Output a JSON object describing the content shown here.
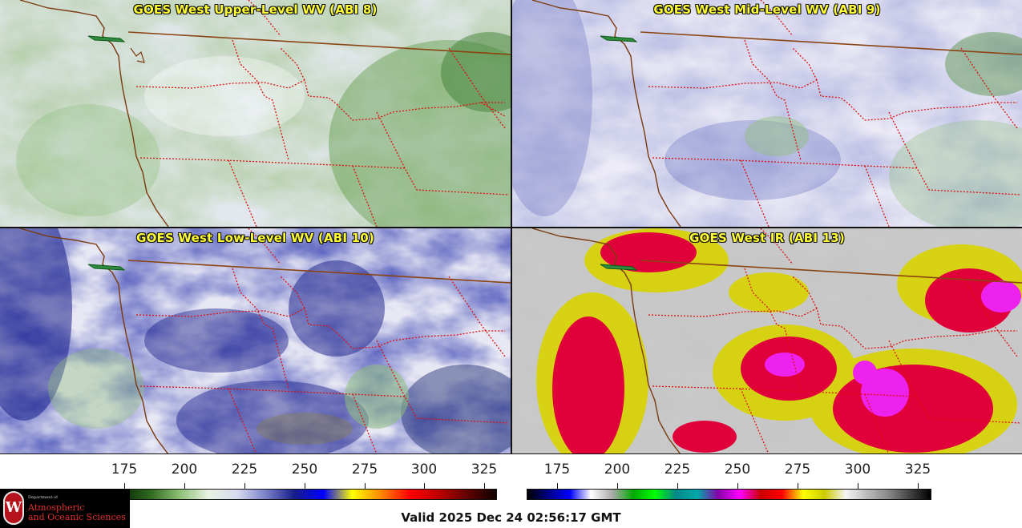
{
  "panels": [
    {
      "id": "upper",
      "title": "GOES West Upper-Level WV (ABI 8)",
      "palette": "wv-green"
    },
    {
      "id": "mid",
      "title": "GOES West Mid-Level WV (ABI 9)",
      "palette": "wv-blue"
    },
    {
      "id": "low",
      "title": "GOES West Low-Level WV (ABI 10)",
      "palette": "wv-navy"
    },
    {
      "id": "ir",
      "title": "GOES West IR (ABI 13)",
      "palette": "ir-enhanced"
    }
  ],
  "colorbars": {
    "wv": {
      "ticks": [
        "175",
        "200",
        "225",
        "250",
        "275",
        "300",
        "325"
      ],
      "colors": [
        "#000000",
        "#0b2a05",
        "#2f6a1f",
        "#8cbf73",
        "#e8f2e2",
        "#d8dcf0",
        "#7a80c8",
        "#161d8a",
        "#0000ff",
        "#ffff00",
        "#ff8800",
        "#ff0000",
        "#c00000",
        "#600000",
        "#100000"
      ]
    },
    "ir": {
      "ticks": [
        "175",
        "200",
        "225",
        "250",
        "275",
        "300",
        "325"
      ],
      "colors": [
        "#000000",
        "#000088",
        "#0000ff",
        "#ffffff",
        "#aaaaaa",
        "#00aa00",
        "#00ff00",
        "#008888",
        "#00aaaa",
        "#8800aa",
        "#ff00ff",
        "#cc0000",
        "#ff0000",
        "#ffff00",
        "#cccc00",
        "#f5f5f5",
        "#bbbbbb",
        "#888888",
        "#444444",
        "#000000"
      ]
    }
  },
  "valid_time": "Valid 2025 Dec 24 02:56:17 GMT",
  "logo": {
    "line1": "Department of",
    "line2": "Atmospheric",
    "line3": "and Oceanic Sciences",
    "mark": "W"
  }
}
